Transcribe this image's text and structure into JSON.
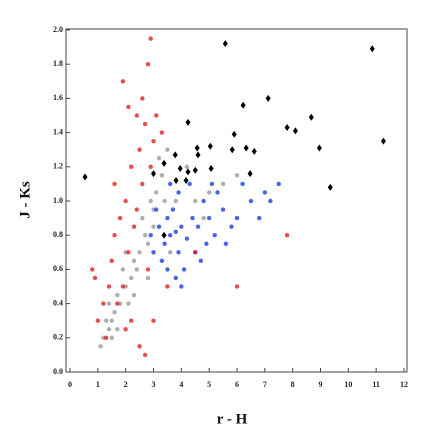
{
  "chart_data": {
    "type": "scatter",
    "x_label": "r - H",
    "y_label": "J - Ks",
    "xlim": [
      0,
      12
    ],
    "ylim": [
      0,
      2
    ],
    "xticks": [
      0,
      1,
      2,
      3,
      4,
      5,
      6,
      7,
      8,
      9,
      10,
      11,
      12
    ],
    "yticks": [
      {
        "value": 0,
        "label": "0.0"
      },
      0.2,
      0.4,
      0.6,
      0.8,
      {
        "value": 1,
        "label": "1.0"
      },
      1.2,
      1.4,
      1.6,
      1.8,
      {
        "value": 2,
        "label": "2.0"
      }
    ],
    "series": [
      {
        "color": "#9a9a9a",
        "marker": "dot",
        "x": [
          1.2,
          1.4,
          1.5,
          1.6,
          1.3,
          1.8,
          1.7,
          2.0,
          2.2,
          1.9,
          2.3,
          2.5,
          2.4,
          2.7,
          2.8,
          2.6,
          3.0,
          3.1,
          3.3,
          3.5,
          3.2,
          3.0,
          2.9,
          3.4,
          4.5,
          5.0,
          5.5,
          6.0,
          4.2,
          2.1,
          1.5,
          1.7,
          2.3,
          3.6,
          2.0,
          1.1,
          1.4,
          2.8,
          3.8,
          4.8
        ],
        "values": [
          0.2,
          0.25,
          0.3,
          0.35,
          0.3,
          0.4,
          0.45,
          0.5,
          0.55,
          0.6,
          0.65,
          0.7,
          0.6,
          0.8,
          0.75,
          0.9,
          0.95,
          1.05,
          1.15,
          1.3,
          1.25,
          0.85,
          1.0,
          1.0,
          1.0,
          1.05,
          1.1,
          1.15,
          1.2,
          0.4,
          0.2,
          0.25,
          0.45,
          0.7,
          0.7,
          0.15,
          0.4,
          0.55,
          1.0,
          0.9
        ]
      },
      {
        "color": "#1a3fe0",
        "marker": "dot",
        "x": [
          3.8,
          3.6,
          4.0,
          3.5,
          4.2,
          3.9,
          3.4,
          4.4,
          3.7,
          3.2,
          4.6,
          5.0,
          5.5,
          6.0,
          6.5,
          7.0,
          4.8,
          5.2,
          5.8,
          3.3,
          3.0,
          4.1,
          4.5,
          3.9,
          3.6,
          4.3,
          5.3,
          6.2,
          7.5,
          2.9,
          3.1,
          4.7,
          5.6,
          3.8,
          4.0,
          6.8,
          7.2,
          3.5,
          4.9,
          5.1
        ],
        "values": [
          0.82,
          0.8,
          0.85,
          0.9,
          0.78,
          0.7,
          0.75,
          0.9,
          0.95,
          0.85,
          0.85,
          0.9,
          0.95,
          0.9,
          1.0,
          1.05,
          1.0,
          0.8,
          0.85,
          0.65,
          0.7,
          0.6,
          0.7,
          1.05,
          1.1,
          1.1,
          1.05,
          1.1,
          1.1,
          0.8,
          0.95,
          0.65,
          0.75,
          0.55,
          0.5,
          0.9,
          1.0,
          0.6,
          0.75,
          1.1
        ]
      },
      {
        "color": "#e02020",
        "marker": "dot",
        "x": [
          2.8,
          2.9,
          2.6,
          2.4,
          2.7,
          2.5,
          2.2,
          2.0,
          1.8,
          1.6,
          1.5,
          1.9,
          1.7,
          2.1,
          2.3,
          2.6,
          3.0,
          3.1,
          2.9,
          2.4,
          1.4,
          1.2,
          0.9,
          0.8,
          1.3,
          2.0,
          2.5,
          3.0,
          2.2,
          1.9,
          2.1,
          3.3,
          2.8,
          3.5,
          4.5,
          7.8,
          6.0,
          1.0,
          2.7,
          1.6
        ],
        "values": [
          1.8,
          1.95,
          1.6,
          1.5,
          1.45,
          1.3,
          1.2,
          1.0,
          0.9,
          0.8,
          0.65,
          0.5,
          0.4,
          0.7,
          0.85,
          1.1,
          1.35,
          1.5,
          1.2,
          0.95,
          0.5,
          0.4,
          0.55,
          0.6,
          0.2,
          0.25,
          0.15,
          0.3,
          0.3,
          1.7,
          1.55,
          1.4,
          0.6,
          0.5,
          0.7,
          0.8,
          0.5,
          0.3,
          0.1,
          1.1
        ]
      },
      {
        "color": "#000000",
        "marker": "diamond",
        "x": [
          0.54,
          5.58,
          10.86,
          7.12,
          6.22,
          7.8,
          8.1,
          8.67,
          8.96,
          11.26,
          9.35,
          4.24,
          5.9,
          5.83,
          6.33,
          6.62,
          5.04,
          4.57,
          4.6,
          3.78,
          3.38,
          3.96,
          4.24,
          3.81,
          4.17,
          4.5,
          5.07,
          6.47,
          3.38,
          3.0
        ],
        "values": [
          1.14,
          1.92,
          1.89,
          1.6,
          1.56,
          1.43,
          1.41,
          1.49,
          1.31,
          1.35,
          1.08,
          1.46,
          1.39,
          1.3,
          1.31,
          1.29,
          1.32,
          1.31,
          1.27,
          1.27,
          1.22,
          1.19,
          1.17,
          1.12,
          1.12,
          1.18,
          1.19,
          1.16,
          0.8,
          1.16
        ]
      }
    ]
  }
}
